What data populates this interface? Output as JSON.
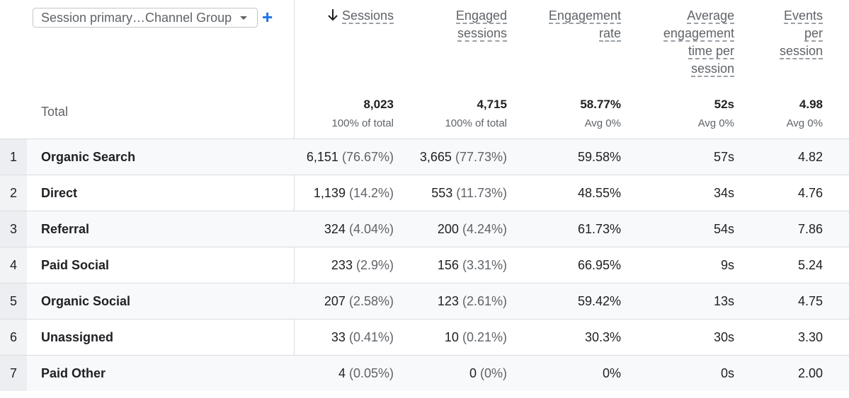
{
  "dimension": {
    "label": "Session primary…Channel Group)"
  },
  "columns": {
    "sessions": [
      "Sessions"
    ],
    "engaged": [
      "Engaged",
      "sessions"
    ],
    "rate": [
      "Engagement",
      "rate"
    ],
    "avgtime": [
      "Average",
      "engagement",
      "time per",
      "session"
    ],
    "events": [
      "Events",
      "per",
      "session"
    ]
  },
  "totals": {
    "label": "Total",
    "sessions": {
      "value": "8,023",
      "sub": "100% of total"
    },
    "engaged": {
      "value": "4,715",
      "sub": "100% of total"
    },
    "rate": {
      "value": "58.77%",
      "sub": "Avg 0%"
    },
    "avgtime": {
      "value": "52s",
      "sub": "Avg 0%"
    },
    "events": {
      "value": "4.98",
      "sub": "Avg 0%"
    }
  },
  "rows": [
    {
      "n": "1",
      "name": "Organic Search",
      "sessions": "6,151",
      "sessions_pct": "(76.67%)",
      "engaged": "3,665",
      "engaged_pct": "(77.73%)",
      "rate": "59.58%",
      "avgtime": "57s",
      "events": "4.82"
    },
    {
      "n": "2",
      "name": "Direct",
      "sessions": "1,139",
      "sessions_pct": "(14.2%)",
      "engaged": "553",
      "engaged_pct": "(11.73%)",
      "rate": "48.55%",
      "avgtime": "34s",
      "events": "4.76"
    },
    {
      "n": "3",
      "name": "Referral",
      "sessions": "324",
      "sessions_pct": "(4.04%)",
      "engaged": "200",
      "engaged_pct": "(4.24%)",
      "rate": "61.73%",
      "avgtime": "54s",
      "events": "7.86"
    },
    {
      "n": "4",
      "name": "Paid Social",
      "sessions": "233",
      "sessions_pct": "(2.9%)",
      "engaged": "156",
      "engaged_pct": "(3.31%)",
      "rate": "66.95%",
      "avgtime": "9s",
      "events": "5.24"
    },
    {
      "n": "5",
      "name": "Organic Social",
      "sessions": "207",
      "sessions_pct": "(2.58%)",
      "engaged": "123",
      "engaged_pct": "(2.61%)",
      "rate": "59.42%",
      "avgtime": "13s",
      "events": "4.75"
    },
    {
      "n": "6",
      "name": "Unassigned",
      "sessions": "33",
      "sessions_pct": "(0.41%)",
      "engaged": "10",
      "engaged_pct": "(0.21%)",
      "rate": "30.3%",
      "avgtime": "30s",
      "events": "3.30"
    },
    {
      "n": "7",
      "name": "Paid Other",
      "sessions": "4",
      "sessions_pct": "(0.05%)",
      "engaged": "0",
      "engaged_pct": "(0%)",
      "rate": "0%",
      "avgtime": "0s",
      "events": "2.00"
    }
  ]
}
